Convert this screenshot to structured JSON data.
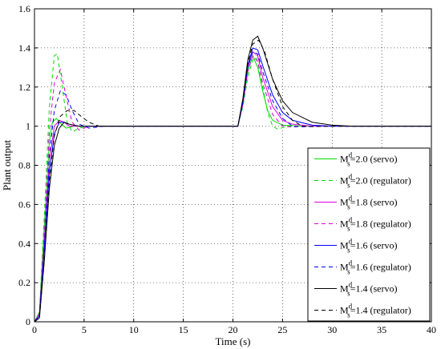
{
  "chart_data": {
    "type": "line",
    "xlabel": "Time (s)",
    "ylabel": "Plant output",
    "xlim": [
      0,
      40
    ],
    "ylim": [
      0,
      1.6
    ],
    "x_ticks": [
      0,
      5,
      10,
      15,
      20,
      25,
      30,
      35,
      40
    ],
    "y_ticks": [
      0,
      0.2,
      0.4,
      0.6,
      0.8,
      1,
      1.2,
      1.4,
      1.6
    ],
    "x_tick_labels": [
      "0",
      "5",
      "10",
      "15",
      "20",
      "25",
      "30",
      "35",
      "40"
    ],
    "y_tick_labels": [
      "0",
      "0.2",
      "0.4",
      "0.6",
      "0.8",
      "1",
      "1.2",
      "1.4",
      "1.6"
    ],
    "grid": true,
    "legend_position": "bottom-right",
    "series": [
      {
        "label_main": "M",
        "label_sup": "d",
        "label_sub": "s",
        "label_rest": "=2.0 (servo)",
        "color": "#00dd00",
        "dash": "solid",
        "points": [
          [
            0,
            0
          ],
          [
            0.5,
            0.05
          ],
          [
            1,
            0.5
          ],
          [
            1.5,
            0.92
          ],
          [
            1.8,
            1.02
          ],
          [
            2.2,
            1.04
          ],
          [
            2.7,
            1.01
          ],
          [
            3.2,
            0.99
          ],
          [
            4,
            1.0
          ],
          [
            20,
            1.0
          ],
          [
            20.5,
            1.0
          ],
          [
            21,
            1.12
          ],
          [
            21.5,
            1.28
          ],
          [
            22,
            1.36
          ],
          [
            22.5,
            1.3
          ],
          [
            23,
            1.18
          ],
          [
            23.5,
            1.08
          ],
          [
            24,
            1.03
          ],
          [
            25,
            1.005
          ],
          [
            27,
            1.0
          ],
          [
            40,
            1.0
          ]
        ]
      },
      {
        "label_main": "M",
        "label_sup": "d",
        "label_sub": "s",
        "label_rest": "=2.0 (regulator)",
        "color": "#00dd00",
        "dash": "5,4",
        "points": [
          [
            0,
            0
          ],
          [
            0.5,
            0.05
          ],
          [
            1,
            0.55
          ],
          [
            1.5,
            1.1
          ],
          [
            2,
            1.36
          ],
          [
            2.3,
            1.37
          ],
          [
            2.8,
            1.2
          ],
          [
            3.3,
            1.02
          ],
          [
            3.8,
            0.97
          ],
          [
            4.5,
            0.99
          ],
          [
            5.5,
            1.0
          ],
          [
            20,
            1.0
          ],
          [
            20.5,
            1.0
          ],
          [
            21,
            1.1
          ],
          [
            21.5,
            1.25
          ],
          [
            22,
            1.34
          ],
          [
            22.4,
            1.35
          ],
          [
            23,
            1.2
          ],
          [
            23.5,
            1.07
          ],
          [
            24,
            1.0
          ],
          [
            24.5,
            0.985
          ],
          [
            25.5,
            1.0
          ],
          [
            40,
            1.0
          ]
        ]
      },
      {
        "label_main": "M",
        "label_sup": "d",
        "label_sub": "s",
        "label_rest": "=1.8 (servo)",
        "color": "#dd00dd",
        "dash": "solid",
        "points": [
          [
            0,
            0
          ],
          [
            0.5,
            0.04
          ],
          [
            1,
            0.42
          ],
          [
            1.5,
            0.82
          ],
          [
            2,
            1.0
          ],
          [
            2.5,
            1.03
          ],
          [
            3,
            1.02
          ],
          [
            3.5,
            1.0
          ],
          [
            4.5,
            1.0
          ],
          [
            20,
            1.0
          ],
          [
            20.5,
            1.0
          ],
          [
            21,
            1.12
          ],
          [
            21.5,
            1.3
          ],
          [
            22,
            1.38
          ],
          [
            22.5,
            1.36
          ],
          [
            23,
            1.25
          ],
          [
            24,
            1.1
          ],
          [
            25,
            1.03
          ],
          [
            26,
            1.01
          ],
          [
            28,
            1.0
          ],
          [
            40,
            1.0
          ]
        ]
      },
      {
        "label_main": "M",
        "label_sup": "d",
        "label_sub": "s",
        "label_rest": "=1.8 (regulator)",
        "color": "#dd00dd",
        "dash": "5,4",
        "points": [
          [
            0,
            0
          ],
          [
            0.5,
            0.04
          ],
          [
            1,
            0.45
          ],
          [
            1.5,
            0.98
          ],
          [
            2,
            1.22
          ],
          [
            2.6,
            1.29
          ],
          [
            3.2,
            1.15
          ],
          [
            3.8,
            1.02
          ],
          [
            4.5,
            0.98
          ],
          [
            5.5,
            1.0
          ],
          [
            6.5,
            1.0
          ],
          [
            20,
            1.0
          ],
          [
            20.5,
            1.0
          ],
          [
            21,
            1.11
          ],
          [
            21.5,
            1.28
          ],
          [
            22,
            1.36
          ],
          [
            22.5,
            1.33
          ],
          [
            23,
            1.22
          ],
          [
            24,
            1.06
          ],
          [
            25,
            1.0
          ],
          [
            26,
            0.995
          ],
          [
            27,
            1.0
          ],
          [
            40,
            1.0
          ]
        ]
      },
      {
        "label_main": "M",
        "label_sup": "d",
        "label_sub": "s",
        "label_rest": "=1.6 (servo)",
        "color": "#0000ff",
        "dash": "solid",
        "points": [
          [
            0,
            0
          ],
          [
            0.5,
            0.03
          ],
          [
            1,
            0.38
          ],
          [
            1.5,
            0.76
          ],
          [
            2,
            0.96
          ],
          [
            2.5,
            1.02
          ],
          [
            3,
            1.02
          ],
          [
            3.5,
            1.01
          ],
          [
            4.5,
            1.0
          ],
          [
            20,
            1.0
          ],
          [
            20.5,
            1.0
          ],
          [
            21,
            1.13
          ],
          [
            21.5,
            1.31
          ],
          [
            22,
            1.4
          ],
          [
            22.5,
            1.39
          ],
          [
            23,
            1.31
          ],
          [
            24,
            1.16
          ],
          [
            25,
            1.07
          ],
          [
            26,
            1.03
          ],
          [
            28,
            1.005
          ],
          [
            30,
            1.0
          ],
          [
            40,
            1.0
          ]
        ]
      },
      {
        "label_main": "M",
        "label_sup": "d",
        "label_sub": "s",
        "label_rest": "=1.6 (regulator)",
        "color": "#0000ff",
        "dash": "5,4",
        "points": [
          [
            0,
            0
          ],
          [
            0.5,
            0.03
          ],
          [
            1,
            0.38
          ],
          [
            1.5,
            0.85
          ],
          [
            2,
            1.08
          ],
          [
            2.6,
            1.18
          ],
          [
            3.2,
            1.16
          ],
          [
            3.8,
            1.08
          ],
          [
            4.5,
            1.01
          ],
          [
            5.5,
            0.99
          ],
          [
            7,
            1.0
          ],
          [
            20,
            1.0
          ],
          [
            20.5,
            1.0
          ],
          [
            21,
            1.12
          ],
          [
            21.5,
            1.3
          ],
          [
            22,
            1.38
          ],
          [
            22.5,
            1.37
          ],
          [
            23,
            1.28
          ],
          [
            24,
            1.13
          ],
          [
            25,
            1.04
          ],
          [
            26,
            1.0
          ],
          [
            27,
            0.997
          ],
          [
            29,
            1.0
          ],
          [
            40,
            1.0
          ]
        ]
      },
      {
        "label_main": "M",
        "label_sup": "d",
        "label_sub": "s",
        "label_rest": "=1.4 (servo)",
        "color": "#000000",
        "dash": "solid",
        "points": [
          [
            0,
            0
          ],
          [
            0.5,
            0.02
          ],
          [
            1,
            0.32
          ],
          [
            1.5,
            0.68
          ],
          [
            2,
            0.9
          ],
          [
            2.5,
            0.99
          ],
          [
            3,
            1.02
          ],
          [
            3.5,
            1.01
          ],
          [
            4.5,
            1.0
          ],
          [
            20,
            1.0
          ],
          [
            20.5,
            1.0
          ],
          [
            21,
            1.14
          ],
          [
            21.5,
            1.34
          ],
          [
            22,
            1.44
          ],
          [
            22.5,
            1.46
          ],
          [
            23,
            1.4
          ],
          [
            24,
            1.24
          ],
          [
            25,
            1.13
          ],
          [
            26,
            1.07
          ],
          [
            28,
            1.02
          ],
          [
            30,
            1.005
          ],
          [
            32,
            1.0
          ],
          [
            40,
            1.0
          ]
        ]
      },
      {
        "label_main": "M",
        "label_sup": "d",
        "label_sub": "s",
        "label_rest": "=1.4 (regulator)",
        "color": "#000000",
        "dash": "5,4",
        "points": [
          [
            0,
            0
          ],
          [
            0.5,
            0.02
          ],
          [
            1,
            0.32
          ],
          [
            1.5,
            0.72
          ],
          [
            2,
            0.95
          ],
          [
            2.6,
            1.05
          ],
          [
            3.3,
            1.08
          ],
          [
            4,
            1.08
          ],
          [
            4.7,
            1.05
          ],
          [
            5.5,
            1.02
          ],
          [
            6.5,
            1.0
          ],
          [
            8,
            1.0
          ],
          [
            20,
            1.0
          ],
          [
            20.5,
            1.0
          ],
          [
            21,
            1.13
          ],
          [
            21.5,
            1.32
          ],
          [
            22,
            1.42
          ],
          [
            22.6,
            1.44
          ],
          [
            23.2,
            1.38
          ],
          [
            24,
            1.24
          ],
          [
            25,
            1.1
          ],
          [
            26,
            1.03
          ],
          [
            27,
            1.0
          ],
          [
            28,
            0.998
          ],
          [
            30,
            1.0
          ],
          [
            40,
            1.0
          ]
        ]
      }
    ]
  }
}
